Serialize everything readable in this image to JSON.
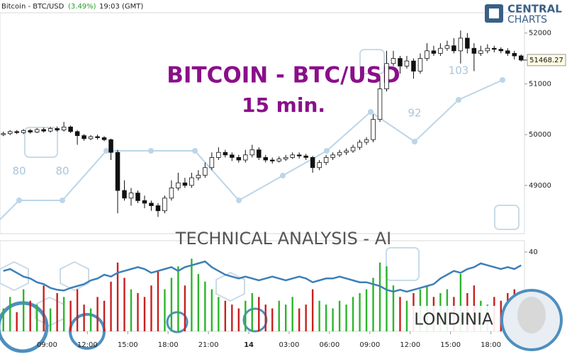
{
  "chart_data": {
    "type": "candlestick",
    "header_symbol": "Bitcoin - BTC/USD",
    "header_change": "(3.49%)",
    "header_time": "19:03 (GMT)",
    "title": "BITCOIN - BTC/USD",
    "subtitle": "15 min.",
    "panel_title": "TECHNICAL  ANALYSIS - AI",
    "brand": [
      "CENTRAL",
      "CHARTS"
    ],
    "presenter": "LONDINIA",
    "watermark_labels": [
      "80",
      "80",
      "92",
      "103"
    ],
    "xlim": [
      0,
      78
    ],
    "xticks": [
      {
        "value": 7,
        "label": "09:00"
      },
      {
        "value": 13,
        "label": "12:00"
      },
      {
        "value": 19,
        "label": "15:00"
      },
      {
        "value": 25,
        "label": "18:00"
      },
      {
        "value": 31,
        "label": "21:00"
      },
      {
        "value": 37,
        "label": "14"
      },
      {
        "value": 43,
        "label": "03:00"
      },
      {
        "value": 49,
        "label": "06:00"
      },
      {
        "value": 55,
        "label": "09:00"
      },
      {
        "value": 61,
        "label": "12:00"
      },
      {
        "value": 67,
        "label": "15:00"
      },
      {
        "value": 73,
        "label": "18:00"
      }
    ],
    "ylim": [
      48050,
      52400
    ],
    "yticks": [
      49000,
      50000,
      51000,
      52000
    ],
    "last_price": 51468.27,
    "up_color": "#ffffff",
    "down_color": "#111111",
    "open": [
      50000,
      50020,
      50060,
      50040,
      50080,
      50050,
      50100,
      50070,
      50120,
      50090,
      50150,
      50060,
      49980,
      49920,
      49960,
      49940,
      49900,
      49650,
      48900,
      48750,
      48850,
      48700,
      48650,
      48600,
      48500,
      48750,
      48950,
      49050,
      49000,
      49150,
      49200,
      49350,
      49550,
      49650,
      49600,
      49550,
      49500,
      49600,
      49700,
      49550,
      49500,
      49480,
      49520,
      49550,
      49600,
      49580,
      49550,
      49350,
      49450,
      49550,
      49600,
      49650,
      49680,
      49750,
      49850,
      49900,
      50300,
      50900,
      51400,
      51500,
      51350,
      51450,
      51250,
      51500,
      51650,
      51600,
      51700,
      51750,
      51650,
      51900,
      51700,
      51600,
      51650,
      51700,
      51680,
      51650,
      51600,
      51550
    ],
    "high": [
      50060,
      50090,
      50090,
      50110,
      50110,
      50130,
      50140,
      50150,
      50160,
      50250,
      50180,
      50090,
      50010,
      49990,
      50000,
      49970,
      49920,
      49700,
      49100,
      48950,
      48900,
      48800,
      48700,
      48650,
      48800,
      49100,
      49250,
      49150,
      49250,
      49300,
      49450,
      49650,
      49750,
      49700,
      49650,
      49600,
      49700,
      49800,
      49750,
      49600,
      49550,
      49570,
      49600,
      49650,
      49650,
      49620,
      49580,
      49500,
      49600,
      49650,
      49700,
      49730,
      49800,
      49900,
      49950,
      50400,
      51100,
      51650,
      51650,
      51550,
      51550,
      51500,
      51600,
      51800,
      51750,
      51800,
      51850,
      51900,
      52050,
      52000,
      51800,
      51750,
      51780,
      51750,
      51720,
      51700,
      51650,
      51580
    ],
    "low": [
      49970,
      49990,
      50010,
      50010,
      50020,
      50030,
      50040,
      50040,
      50060,
      50060,
      50030,
      49800,
      49880,
      49890,
      49900,
      49870,
      49500,
      48450,
      48700,
      48600,
      48650,
      48550,
      48500,
      48380,
      48450,
      48700,
      48900,
      48950,
      48950,
      49100,
      49150,
      49300,
      49500,
      49550,
      49480,
      49450,
      49450,
      49550,
      49500,
      49450,
      49430,
      49450,
      49480,
      49520,
      49530,
      49500,
      49250,
      49300,
      49400,
      49500,
      49560,
      49600,
      49640,
      49700,
      49800,
      49850,
      50250,
      50850,
      51350,
      51200,
      51300,
      51100,
      51200,
      51450,
      51550,
      51550,
      51650,
      51600,
      51400,
      51600,
      51250,
      51550,
      51600,
      51620,
      51600,
      51550,
      51480,
      51440
    ],
    "close": [
      50020,
      50060,
      50040,
      50080,
      50050,
      50100,
      50070,
      50120,
      50090,
      50150,
      50060,
      49980,
      49920,
      49960,
      49940,
      49900,
      49650,
      48900,
      48750,
      48850,
      48700,
      48650,
      48600,
      48500,
      48750,
      48950,
      49050,
      49000,
      49150,
      49200,
      49350,
      49550,
      49650,
      49600,
      49550,
      49500,
      49600,
      49700,
      49550,
      49500,
      49480,
      49520,
      49550,
      49600,
      49580,
      49550,
      49350,
      49450,
      49550,
      49600,
      49650,
      49680,
      49750,
      49850,
      49900,
      50300,
      50900,
      51400,
      51500,
      51350,
      51450,
      51250,
      51500,
      51650,
      51600,
      51700,
      51750,
      51650,
      51900,
      51700,
      51600,
      51650,
      51700,
      51680,
      51650,
      51600,
      51550,
      51468.27
    ],
    "volume": {
      "up_color": "#2db52d",
      "down_color": "#c82020",
      "lim": [
        0,
        100
      ],
      "values": [
        30,
        45,
        25,
        55,
        40,
        35,
        60,
        30,
        50,
        45,
        40,
        55,
        35,
        30,
        45,
        40,
        65,
        90,
        70,
        55,
        50,
        45,
        60,
        80,
        55,
        70,
        85,
        60,
        95,
        75,
        65,
        55,
        45,
        40,
        35,
        30,
        40,
        50,
        45,
        35,
        30,
        40,
        35,
        45,
        30,
        35,
        55,
        40,
        35,
        30,
        40,
        35,
        45,
        50,
        55,
        70,
        90,
        85,
        60,
        45,
        40,
        50,
        55,
        60,
        45,
        50,
        55,
        45,
        75,
        50,
        60,
        40,
        35,
        45,
        40,
        50,
        55,
        45
      ]
    },
    "indicator": {
      "color": "#3d7fb8",
      "ylim": [
        19,
        43
      ],
      "yticks": [
        40
      ],
      "values": [
        35,
        35.5,
        34.5,
        33.5,
        33,
        32,
        31.5,
        30.5,
        30,
        29.8,
        30.5,
        31,
        31.5,
        32.5,
        33,
        34,
        33.5,
        34.5,
        35,
        35.5,
        36,
        35.5,
        34.5,
        35,
        35.5,
        36,
        35,
        36,
        36.5,
        37,
        37.5,
        36,
        35,
        34,
        33.5,
        33,
        33.5,
        33,
        32.5,
        33,
        33.5,
        33,
        32.5,
        33,
        33.5,
        33,
        32,
        32.5,
        33,
        33,
        33.5,
        33,
        32.5,
        32,
        32,
        31.5,
        31,
        30,
        29.5,
        30,
        29.5,
        30,
        30.5,
        31,
        31.5,
        33,
        34,
        35,
        34.5,
        35.5,
        36,
        37,
        36.5,
        36,
        35.5,
        36,
        35.5,
        36.5
      ]
    }
  }
}
